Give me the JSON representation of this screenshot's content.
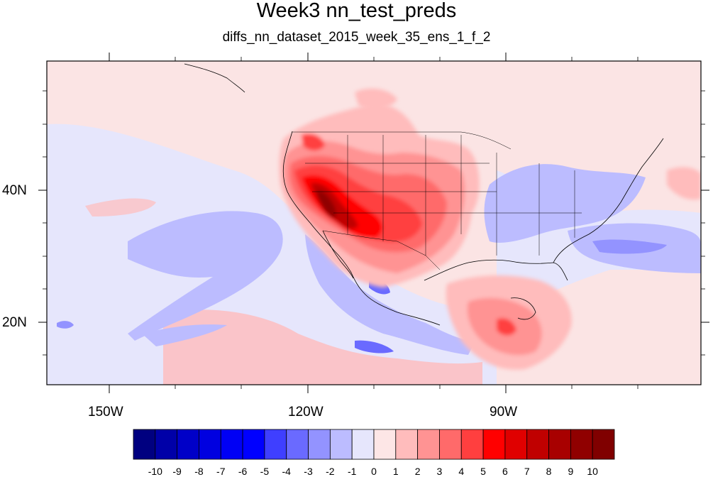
{
  "title": "Week3 nn_test_preds",
  "subtitle": "diffs_nn_dataset_2015_week_35_ens_1_f_2",
  "lon_ticks": [
    "150W",
    "120W",
    "90W"
  ],
  "lat_ticks": [
    "40N",
    "20N"
  ],
  "colorbar": {
    "labels": [
      "-10",
      "-9",
      "-8",
      "-7",
      "-6",
      "-5",
      "-4",
      "-3",
      "-2",
      "-1",
      "0",
      "1",
      "2",
      "3",
      "4",
      "5",
      "6",
      "7",
      "8",
      "9",
      "10"
    ],
    "colors": [
      "#000080",
      "#0000a8",
      "#0000c8",
      "#0000e0",
      "#0000f5",
      "#0000ff",
      "#3f3fff",
      "#6a6aff",
      "#9393ff",
      "#bcbcff",
      "#e6e6fc",
      "#fde6e6",
      "#ffbcbc",
      "#ff9393",
      "#ff6a6a",
      "#ff3f3f",
      "#ff0000",
      "#e00000",
      "#c00000",
      "#a80000",
      "#900000",
      "#800000"
    ]
  },
  "colors": {
    "background_field": "#fbe4e4",
    "ocean_blue": "#e6e6fc"
  }
}
